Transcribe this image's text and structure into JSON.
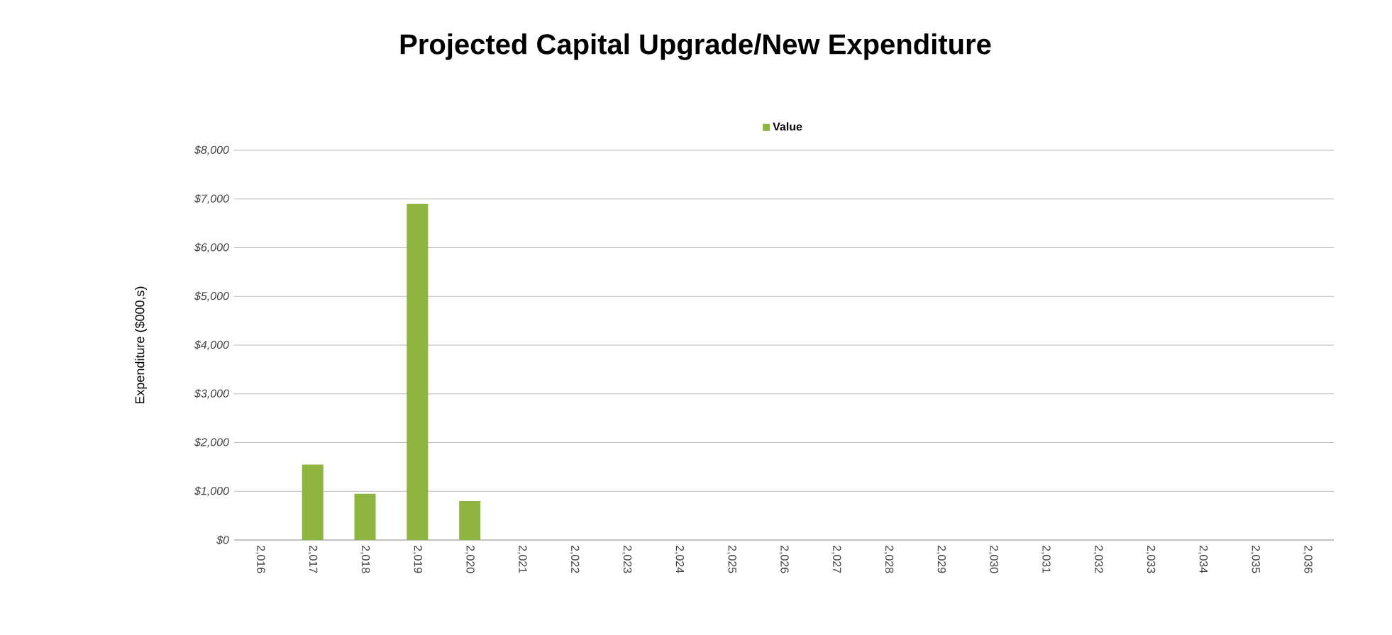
{
  "chart_data": {
    "type": "bar",
    "title": "Projected Capital Upgrade/New Expenditure",
    "ylabel": "Expenditure ($000,s)",
    "categories": [
      "2,016",
      "2,017",
      "2,018",
      "2,019",
      "2,020",
      "2,021",
      "2,022",
      "2,023",
      "2,024",
      "2,025",
      "2,026",
      "2,027",
      "2,028",
      "2,029",
      "2,030",
      "2,031",
      "2,032",
      "2,033",
      "2,034",
      "2,035",
      "2,036"
    ],
    "series": [
      {
        "name": "Value",
        "color": "#8db53f",
        "values": [
          0,
          1550,
          950,
          6900,
          800,
          0,
          0,
          0,
          0,
          0,
          0,
          0,
          0,
          0,
          0,
          0,
          0,
          0,
          0,
          0,
          0
        ]
      }
    ],
    "ylim": [
      0,
      8000
    ],
    "yticks": [
      {
        "value": 0,
        "label": "$0"
      },
      {
        "value": 1000,
        "label": "$1,000"
      },
      {
        "value": 2000,
        "label": "$2,000"
      },
      {
        "value": 3000,
        "label": "$3,000"
      },
      {
        "value": 4000,
        "label": "$4,000"
      },
      {
        "value": 5000,
        "label": "$5,000"
      },
      {
        "value": 6000,
        "label": "$6,000"
      },
      {
        "value": 7000,
        "label": "$7,000"
      },
      {
        "value": 8000,
        "label": "$8,000"
      }
    ],
    "grid": "y",
    "legend": "top"
  }
}
